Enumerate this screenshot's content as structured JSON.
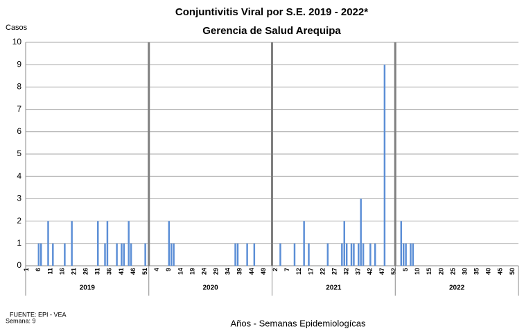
{
  "chart_data": {
    "type": "bar",
    "title": "Conjuntivitis Viral por S.E. 2019 - 2022*",
    "subtitle": "Gerencia de Salud Arequipa",
    "y_label": "Casos",
    "x_label": "Años - Semanas Epidemiologícas",
    "notes": [
      "FUENTE: EPI - VEA",
      "Semana: 9"
    ],
    "color": "#5b8ed6",
    "ylim": [
      0,
      10
    ],
    "yticks": [
      0,
      1,
      2,
      3,
      4,
      5,
      6,
      7,
      8,
      9,
      10
    ],
    "grid": true,
    "groups": [
      {
        "name": "2019",
        "categories": [
          1,
          null,
          null,
          null,
          null,
          6,
          null,
          null,
          null,
          null,
          11,
          null,
          null,
          null,
          null,
          16,
          null,
          null,
          null,
          null,
          21,
          null,
          null,
          null,
          null,
          26,
          null,
          null,
          null,
          null,
          31,
          null,
          null,
          null,
          null,
          36,
          null,
          null,
          null,
          null,
          41,
          null,
          null,
          null,
          null,
          46,
          null,
          null,
          null,
          null,
          51,
          null
        ],
        "values": [
          0,
          0,
          0,
          0,
          0,
          1,
          1,
          0,
          0,
          2,
          0,
          1,
          0,
          0,
          0,
          0,
          1,
          0,
          0,
          2,
          0,
          0,
          0,
          0,
          0,
          0,
          0,
          0,
          0,
          0,
          2,
          0,
          0,
          1,
          2,
          0,
          0,
          0,
          1,
          0,
          1,
          1,
          0,
          2,
          1,
          0,
          0,
          0,
          0,
          0,
          1,
          0
        ]
      },
      {
        "name": "2020",
        "categories": [
          null,
          null,
          null,
          4,
          null,
          null,
          null,
          null,
          9,
          null,
          null,
          null,
          null,
          14,
          null,
          null,
          null,
          null,
          19,
          null,
          null,
          null,
          null,
          24,
          null,
          null,
          null,
          null,
          29,
          null,
          null,
          null,
          null,
          34,
          null,
          null,
          null,
          null,
          39,
          null,
          null,
          null,
          null,
          44,
          null,
          null,
          null,
          null,
          49,
          null,
          null,
          null
        ],
        "values": [
          0,
          0,
          0,
          0,
          0,
          0,
          0,
          0,
          2,
          1,
          1,
          0,
          0,
          0,
          0,
          0,
          0,
          0,
          0,
          0,
          0,
          0,
          0,
          0,
          0,
          0,
          0,
          0,
          0,
          0,
          0,
          0,
          0,
          0,
          0,
          0,
          1,
          1,
          0,
          0,
          0,
          1,
          0,
          0,
          1,
          0,
          0,
          0,
          0,
          0,
          0,
          0
        ]
      },
      {
        "name": "2021",
        "categories": [
          null,
          2,
          null,
          null,
          null,
          null,
          7,
          null,
          null,
          null,
          null,
          12,
          null,
          null,
          null,
          null,
          17,
          null,
          null,
          null,
          null,
          22,
          null,
          null,
          null,
          null,
          27,
          null,
          null,
          null,
          null,
          32,
          null,
          null,
          null,
          null,
          37,
          null,
          null,
          null,
          null,
          42,
          null,
          null,
          null,
          null,
          47,
          null,
          null,
          null,
          null,
          52
        ],
        "values": [
          0,
          0,
          0,
          1,
          0,
          0,
          0,
          0,
          0,
          1,
          0,
          0,
          0,
          2,
          0,
          1,
          0,
          0,
          0,
          0,
          0,
          0,
          0,
          1,
          0,
          0,
          0,
          0,
          0,
          1,
          2,
          1,
          0,
          1,
          1,
          0,
          1,
          3,
          1,
          0,
          0,
          1,
          0,
          1,
          0,
          0,
          0,
          9,
          0,
          0,
          0,
          0
        ]
      },
      {
        "name": "2022",
        "categories": [
          null,
          null,
          null,
          null,
          5,
          null,
          null,
          null,
          null,
          10,
          null,
          null,
          null,
          null,
          15,
          null,
          null,
          null,
          null,
          20,
          null,
          null,
          null,
          null,
          25,
          null,
          null,
          null,
          null,
          30,
          null,
          null,
          null,
          null,
          35,
          null,
          null,
          null,
          null,
          40,
          null,
          null,
          null,
          null,
          45,
          null,
          null,
          null,
          null,
          50,
          null,
          null
        ],
        "values": [
          0,
          0,
          2,
          1,
          1,
          0,
          1,
          1,
          0,
          null,
          null,
          null,
          null,
          null,
          null,
          null,
          null,
          null,
          null,
          null,
          null,
          null,
          null,
          null,
          null,
          null,
          null,
          null,
          null,
          null,
          null,
          null,
          null,
          null,
          null,
          null,
          null,
          null,
          null,
          null,
          null,
          null,
          null,
          null,
          null,
          null,
          null,
          null,
          null,
          null,
          null,
          null
        ]
      }
    ]
  }
}
